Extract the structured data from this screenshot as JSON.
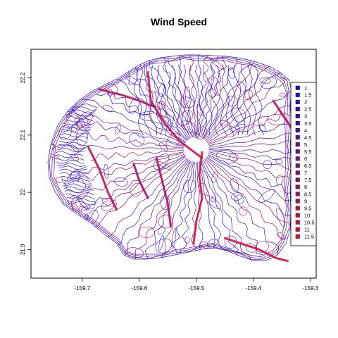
{
  "chart_data": {
    "type": "contour-map",
    "title": "Wind Speed",
    "xlabel": "",
    "ylabel": "",
    "xlim": [
      -159.79,
      -159.29
    ],
    "ylim": [
      21.85,
      22.25
    ],
    "x_ticks": [
      {
        "value": -159.7,
        "label": "-159.7"
      },
      {
        "value": -159.6,
        "label": "-159.6"
      },
      {
        "value": -159.5,
        "label": "-159.5"
      },
      {
        "value": -159.4,
        "label": "-159.4"
      },
      {
        "value": -159.3,
        "label": "-159.3"
      }
    ],
    "y_ticks": [
      {
        "value": 21.9,
        "label": "21.9"
      },
      {
        "value": 22.0,
        "label": "22"
      },
      {
        "value": 22.1,
        "label": "22.1"
      },
      {
        "value": 22.2,
        "label": "22.2"
      }
    ],
    "legend_position": "right",
    "color_low": "#1a10e0",
    "color_high": "#e01030",
    "levels": [
      {
        "label": "1",
        "value": 1
      },
      {
        "label": "1.5",
        "value": 1.5
      },
      {
        "label": "2",
        "value": 2
      },
      {
        "label": "2.5",
        "value": 2.5
      },
      {
        "label": "3",
        "value": 3
      },
      {
        "label": "3.5",
        "value": 3.5
      },
      {
        "label": "4",
        "value": 4
      },
      {
        "label": "4.5",
        "value": 4.5
      },
      {
        "label": "5",
        "value": 5
      },
      {
        "label": "5.5",
        "value": 5.5
      },
      {
        "label": "6",
        "value": 6
      },
      {
        "label": "6.5",
        "value": 6.5
      },
      {
        "label": "7",
        "value": 7
      },
      {
        "label": "7.5",
        "value": 7.5
      },
      {
        "label": "8",
        "value": 8
      },
      {
        "label": "8.5",
        "value": 8.5
      },
      {
        "label": "9",
        "value": 9
      },
      {
        "label": "9.5",
        "value": 9.5
      },
      {
        "label": "10",
        "value": 10
      },
      {
        "label": "10.5",
        "value": 10.5
      },
      {
        "label": "11",
        "value": 11
      },
      {
        "label": "11.5",
        "value": 11.5
      }
    ],
    "ridges": [
      {
        "level": 10.5,
        "points": [
          [
            -159.585,
            22.21
          ],
          [
            -159.58,
            22.16
          ],
          [
            -159.555,
            22.12
          ],
          [
            -159.53,
            22.09
          ],
          [
            -159.49,
            22.06
          ]
        ]
      },
      {
        "level": 11,
        "points": [
          [
            -159.49,
            22.07
          ],
          [
            -159.495,
            22.03
          ],
          [
            -159.49,
            21.99
          ],
          [
            -159.5,
            21.95
          ],
          [
            -159.505,
            21.91
          ]
        ]
      },
      {
        "level": 9.5,
        "points": [
          [
            -159.67,
            22.18
          ],
          [
            -159.63,
            22.17
          ],
          [
            -159.6,
            22.16
          ],
          [
            -159.575,
            22.15
          ]
        ]
      },
      {
        "level": 10,
        "points": [
          [
            -159.69,
            22.08
          ],
          [
            -159.67,
            22.04
          ],
          [
            -159.655,
            22.0
          ],
          [
            -159.64,
            21.97
          ]
        ]
      },
      {
        "level": 9,
        "points": [
          [
            -159.57,
            22.06
          ],
          [
            -159.56,
            22.02
          ],
          [
            -159.55,
            21.98
          ],
          [
            -159.545,
            21.94
          ]
        ]
      },
      {
        "level": 11,
        "points": [
          [
            -159.45,
            21.92
          ],
          [
            -159.42,
            21.91
          ],
          [
            -159.39,
            21.9
          ],
          [
            -159.36,
            21.885
          ],
          [
            -159.34,
            21.88
          ]
        ]
      },
      {
        "level": 9.5,
        "points": [
          [
            -159.365,
            22.16
          ],
          [
            -159.345,
            22.13
          ],
          [
            -159.325,
            22.1
          ]
        ]
      },
      {
        "level": 8.5,
        "points": [
          [
            -159.61,
            22.05
          ],
          [
            -159.6,
            22.02
          ],
          [
            -159.585,
            21.99
          ]
        ]
      }
    ]
  }
}
